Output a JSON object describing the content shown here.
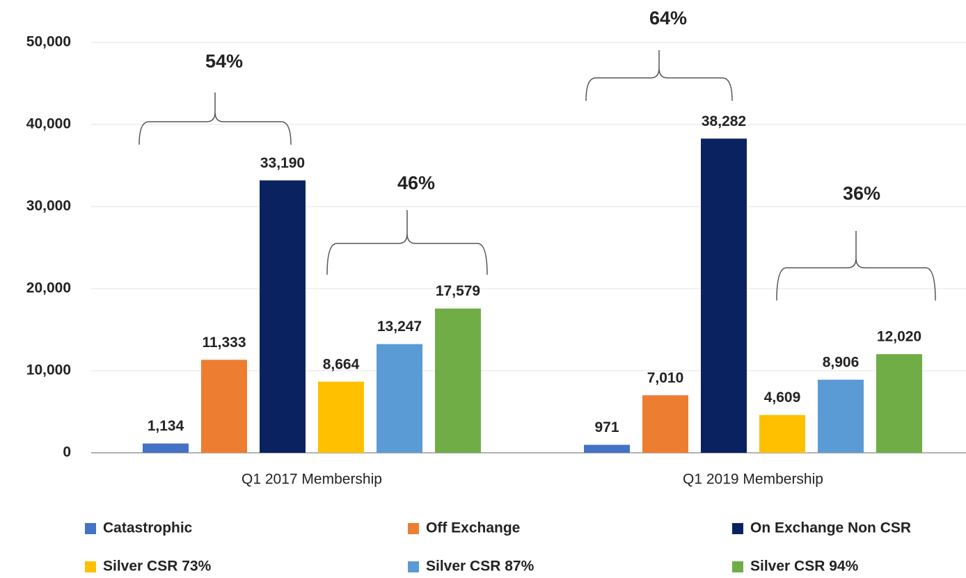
{
  "chart_data": {
    "type": "bar",
    "categories": [
      "Q1 2017 Membership",
      "Q1 2019 Membership"
    ],
    "series": [
      {
        "name": "Catastrophic",
        "color": "#4472c4",
        "values": [
          1134,
          971
        ],
        "value_labels": [
          "1,134",
          "971"
        ]
      },
      {
        "name": "Off Exchange",
        "color": "#ed7d31",
        "values": [
          11333,
          7010
        ],
        "value_labels": [
          "11,333",
          "7,010"
        ]
      },
      {
        "name": "On Exchange Non CSR",
        "color": "#0b2260",
        "values": [
          33190,
          38282
        ],
        "value_labels": [
          "33,190",
          "38,282"
        ]
      },
      {
        "name": "Silver CSR 73%",
        "color": "#ffc000",
        "values": [
          8664,
          4609
        ],
        "value_labels": [
          "8,664",
          "4,609"
        ]
      },
      {
        "name": "Silver CSR 87%",
        "color": "#5b9bd5",
        "values": [
          13247,
          8906
        ],
        "value_labels": [
          "13,247",
          "8,906"
        ]
      },
      {
        "name": "Silver CSR 94%",
        "color": "#70ad47",
        "values": [
          17579,
          12020
        ],
        "value_labels": [
          "17,579",
          "12,020"
        ]
      }
    ],
    "ylim": [
      0,
      50000
    ],
    "yticks": [
      0,
      {
        "value": 10000,
        "label": "10,000"
      },
      {
        "value": 20000,
        "label": "20,000"
      },
      {
        "value": 30000,
        "label": "30,000"
      },
      {
        "value": 40000,
        "label": "40,000"
      },
      {
        "value": 50000,
        "label": "50,000"
      }
    ],
    "grid": true,
    "annotations": [
      "54%",
      "46%",
      "64%",
      "36%"
    ],
    "legend": "bottom"
  }
}
